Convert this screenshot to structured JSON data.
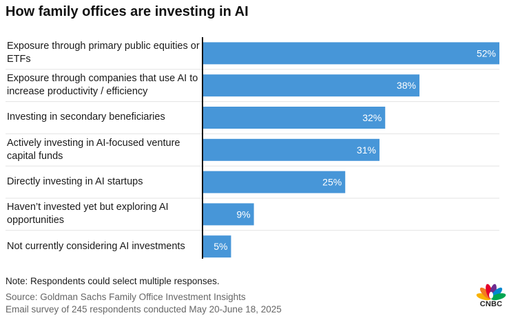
{
  "chart_data": {
    "type": "bar",
    "orientation": "horizontal",
    "title": "How family offices are investing in AI",
    "categories": [
      "Exposure through primary public equities or ETFs",
      "Exposure through companies that use AI to increase productivity / efficiency",
      "Investing in secondary beneficiaries",
      "Actively investing in AI-focused venture capital funds",
      "Directly investing in AI startups",
      "Haven’t invested yet but exploring AI opportunities",
      "Not currently considering AI investments"
    ],
    "values": [
      52,
      38,
      32,
      31,
      25,
      9,
      5
    ],
    "value_labels": [
      "52%",
      "38%",
      "32%",
      "31%",
      "25%",
      "9%",
      "5%"
    ],
    "unit": "%",
    "xlim": [
      0,
      52
    ],
    "xlabel": "",
    "ylabel": "",
    "grid": false,
    "bar_color": "#4796d8",
    "label_color": "#ffffff"
  },
  "labels": [
    "Exposure through primary public equities or ETFs",
    "Exposure through companies that use AI to increase productivity / efficiency",
    "Investing in secondary beneficiaries",
    "Actively investing in AI-focused venture capital funds",
    "Directly investing in AI startups",
    "Haven’t invested yet but exploring AI opportunities",
    "Not currently considering AI investments"
  ],
  "footer": {
    "note": "Note: Respondents could select multiple responses.",
    "source": "Source: Goldman Sachs Family Office Investment Insights",
    "survey": "Email survey of 245 respondents conducted May 20-June 18, 2025"
  },
  "logo": {
    "text": "CNBC",
    "icon": "peacock-icon",
    "colors": [
      "#f9b200",
      "#f47b20",
      "#e4002b",
      "#6e2c8f",
      "#0089d0",
      "#00a651"
    ]
  }
}
